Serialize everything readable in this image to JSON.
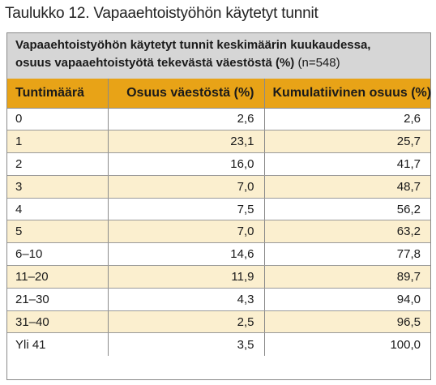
{
  "caption": "Taulukko 12. Vapaaehtoistyöhön käytetyt tunnit",
  "table_title_line1": "Vapaaehtoistyöhön käytetyt tunnit keskimäärin kuukaudessa,",
  "table_title_line2": "osuus vapaaehtoistyötä tekevästä väestöstä (%)",
  "table_title_n": " (n=548)",
  "colors": {
    "header_bg": "#e8a317",
    "title_bg": "#d6d6d6",
    "shaded_row": "#fbefcf"
  },
  "chart_data": {
    "type": "table",
    "columns": [
      "Tuntimäärä",
      "Osuus väestöstä (%)",
      "Kumulatiivinen osuus (%)"
    ],
    "rows": [
      [
        "0",
        "2,6",
        "2,6"
      ],
      [
        "1",
        "23,1",
        "25,7"
      ],
      [
        "2",
        "16,0",
        "41,7"
      ],
      [
        "3",
        "7,0",
        "48,7"
      ],
      [
        "4",
        "7,5",
        "56,2"
      ],
      [
        "5",
        "7,0",
        "63,2"
      ],
      [
        "6–10",
        "14,6",
        "77,8"
      ],
      [
        "11–20",
        "11,9",
        "89,7"
      ],
      [
        "21–30",
        "4,3",
        "94,0"
      ],
      [
        "31–40",
        "2,5",
        "96,5"
      ],
      [
        "Yli 41",
        "3,5",
        "100,0"
      ]
    ]
  }
}
